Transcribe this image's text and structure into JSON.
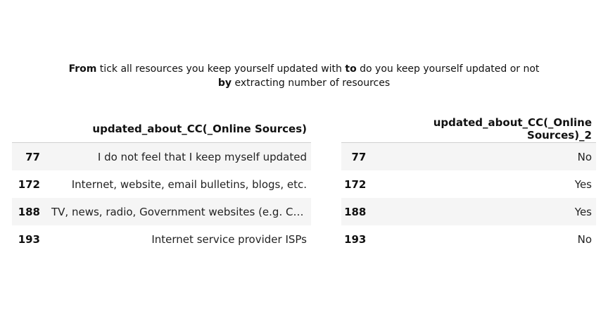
{
  "caption": {
    "line1": {
      "bold1": "From",
      "text1": " tick all resources you keep yourself updated with ",
      "bold2": "to",
      "text2": " do you keep yourself updated or not"
    },
    "line2": {
      "bold1": "by",
      "text1": " extracting number of resources"
    }
  },
  "left_table": {
    "header": "updated_about_CC(_Online Sources)",
    "rows": [
      {
        "index": "77",
        "value": "I do not feel that I keep myself updated"
      },
      {
        "index": "172",
        "value": "Internet, website, email bulletins, blogs, etc."
      },
      {
        "index": "188",
        "value": "TV, news, radio, Government websites (e.g. CER..."
      },
      {
        "index": "193",
        "value": "Internet service provider ISPs"
      }
    ]
  },
  "right_table": {
    "header": "updated_about_CC(_Online Sources)_2",
    "rows": [
      {
        "index": "77",
        "value": "No"
      },
      {
        "index": "172",
        "value": "Yes"
      },
      {
        "index": "188",
        "value": "Yes"
      },
      {
        "index": "193",
        "value": "No"
      }
    ]
  }
}
